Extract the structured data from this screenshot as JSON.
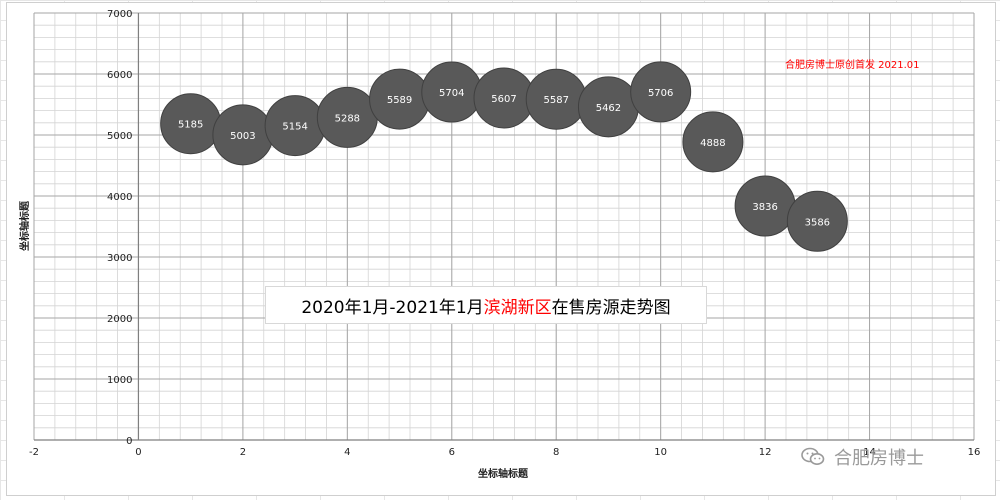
{
  "chart_data": {
    "type": "bubble",
    "title": {
      "prefix": "2020年1月-2021年1月",
      "highlight": "滨湖新区",
      "suffix": "在售房源走势图"
    },
    "xlabel": "坐标轴标题",
    "ylabel": "坐标轴标题",
    "xlim": [
      -2,
      16
    ],
    "ylim": [
      0,
      7000
    ],
    "x_ticks": [
      -2,
      0,
      2,
      4,
      6,
      8,
      10,
      12,
      14,
      16
    ],
    "y_ticks": [
      0,
      1000,
      2000,
      3000,
      4000,
      5000,
      6000,
      7000
    ],
    "grid": true,
    "bubble_color": "#595959",
    "points": [
      {
        "x": 1,
        "y": 5185,
        "label": "5185"
      },
      {
        "x": 2,
        "y": 5003,
        "label": "5003"
      },
      {
        "x": 3,
        "y": 5154,
        "label": "5154"
      },
      {
        "x": 4,
        "y": 5288,
        "label": "5288"
      },
      {
        "x": 5,
        "y": 5589,
        "label": "5589"
      },
      {
        "x": 6,
        "y": 5704,
        "label": "5704"
      },
      {
        "x": 7,
        "y": 5607,
        "label": "5607"
      },
      {
        "x": 8,
        "y": 5587,
        "label": "5587"
      },
      {
        "x": 9,
        "y": 5462,
        "label": "5462"
      },
      {
        "x": 10,
        "y": 5706,
        "label": "5706"
      },
      {
        "x": 11,
        "y": 4888,
        "label": "4888"
      },
      {
        "x": 12,
        "y": 3836,
        "label": "3836"
      },
      {
        "x": 13,
        "y": 3586,
        "label": "3586"
      }
    ],
    "annotation": "合肥房博士原创首发 2021.01",
    "annotation_color": "#ff0000"
  },
  "watermark": {
    "text": "合肥房博士",
    "icon": "wechat-icon"
  }
}
